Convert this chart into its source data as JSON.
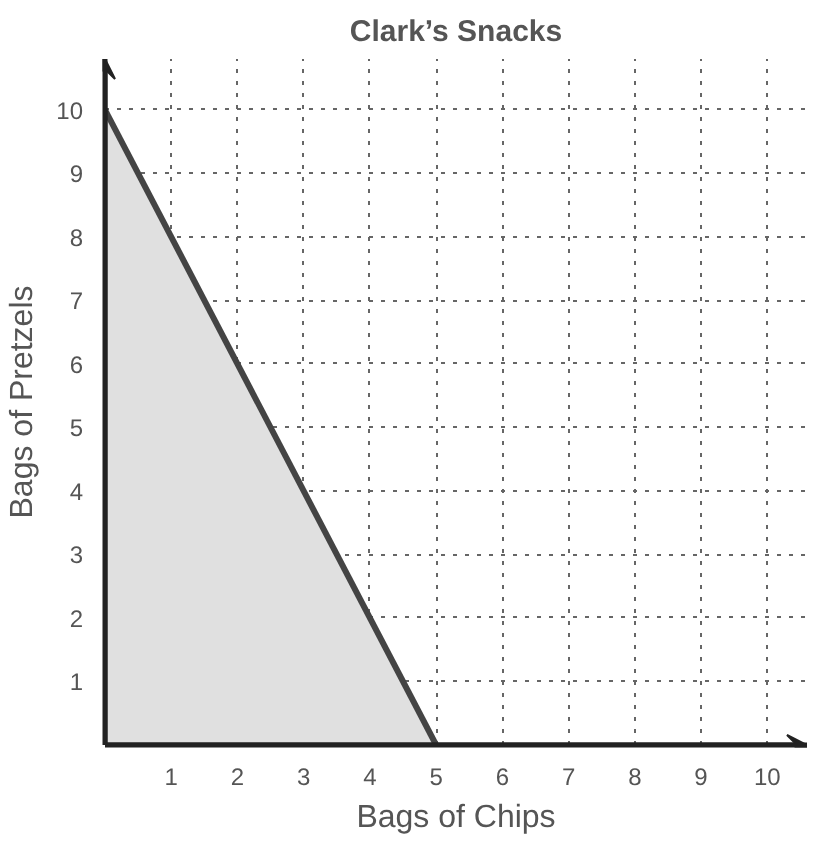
{
  "chart_data": {
    "type": "area",
    "title": "Clark’s Snacks",
    "xlabel": "Bags of Chips",
    "ylabel": "Bags of Pretzels",
    "x": [
      0,
      5
    ],
    "series": [
      {
        "color": "#e0e0e0",
        "values": [
          10,
          0
        ]
      }
    ],
    "xlim": [
      0,
      10.6
    ],
    "ylim": [
      0,
      10.8
    ],
    "xticks": [
      1,
      2,
      3,
      4,
      5,
      6,
      7,
      8,
      9,
      10
    ],
    "yticks": [
      1,
      2,
      3,
      4,
      5,
      6,
      7,
      8,
      9,
      10
    ],
    "grid": true,
    "line_style": "solid"
  }
}
